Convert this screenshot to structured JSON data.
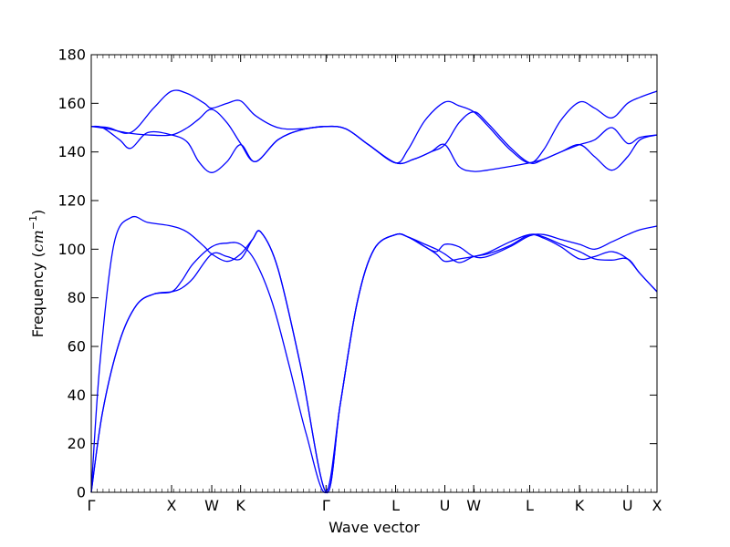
{
  "chart_data": {
    "type": "line",
    "title": "",
    "xlabel": "Wave vector",
    "ylabel": "Frequency (cm⁻¹)",
    "ylabel_main": "Frequency (",
    "ylabel_unit": "cm",
    "ylabel_exp": "−1",
    "ylabel_close": ")",
    "ylim": [
      0,
      180
    ],
    "yticks": [
      0,
      20,
      40,
      60,
      80,
      100,
      120,
      140,
      160,
      180
    ],
    "xlim": [
      0,
      1
    ],
    "grid": false,
    "legend": "none",
    "color": "#0000ff",
    "high_symmetry_points": [
      {
        "label": "Γ",
        "x": 0.0
      },
      {
        "label": "X",
        "x": 0.142
      },
      {
        "label": "W",
        "x": 0.213
      },
      {
        "label": "K",
        "x": 0.264
      },
      {
        "label": "Γ",
        "x": 0.415
      },
      {
        "label": "L",
        "x": 0.538
      },
      {
        "label": "U",
        "x": 0.625
      },
      {
        "label": "W",
        "x": 0.676
      },
      {
        "label": "L",
        "x": 0.775
      },
      {
        "label": "K",
        "x": 0.863
      },
      {
        "label": "U",
        "x": 0.948
      },
      {
        "label": "X",
        "x": 1.0
      }
    ],
    "series": [
      {
        "x": [
          0,
          0.02,
          0.05,
          0.08,
          0.11,
          0.142,
          0.16,
          0.18,
          0.213,
          0.24,
          0.264,
          0.29,
          0.32,
          0.35,
          0.38,
          0.415,
          0.44,
          0.47,
          0.5,
          0.538,
          0.56,
          0.59,
          0.61,
          0.625,
          0.65,
          0.676,
          0.7,
          0.74,
          0.775,
          0.8,
          0.83,
          0.863,
          0.89,
          0.92,
          0.948,
          0.97,
          1.0
        ],
        "values": [
          0,
          33,
          62,
          77,
          81.5,
          82.5,
          87,
          94,
          101,
          102.5,
          102,
          95,
          78,
          52,
          24,
          0,
          36,
          78,
          100,
          106,
          105,
          101,
          98,
          95,
          96,
          97,
          98.5,
          103,
          106,
          104.5,
          101,
          96,
          97,
          99,
          96,
          90,
          82.5
        ]
      },
      {
        "x": [
          0,
          0.02,
          0.05,
          0.08,
          0.11,
          0.142,
          0.16,
          0.18,
          0.213,
          0.24,
          0.264,
          0.285,
          0.3,
          0.33,
          0.37,
          0.415,
          0.44,
          0.47,
          0.5,
          0.538,
          0.56,
          0.59,
          0.61,
          0.625,
          0.65,
          0.676,
          0.7,
          0.74,
          0.775,
          0.8,
          0.83,
          0.863,
          0.89,
          0.92,
          0.948,
          0.97,
          1.0
        ],
        "values": [
          0,
          33,
          62,
          77,
          81.5,
          82.5,
          84,
          88,
          98,
          97,
          96,
          104,
          107,
          92,
          52,
          0,
          36,
          78,
          100,
          106,
          105,
          102,
          100,
          98,
          94.5,
          97,
          98,
          101.5,
          106,
          105,
          102,
          99,
          96,
          95.5,
          96,
          90,
          82.5
        ]
      },
      {
        "x": [
          0,
          0.015,
          0.04,
          0.07,
          0.1,
          0.142,
          0.17,
          0.2,
          0.213,
          0.24,
          0.264,
          0.285,
          0.3,
          0.33,
          0.37,
          0.415,
          0.44,
          0.47,
          0.5,
          0.538,
          0.56,
          0.59,
          0.61,
          0.625,
          0.65,
          0.676,
          0.7,
          0.74,
          0.775,
          0.8,
          0.83,
          0.863,
          0.89,
          0.92,
          0.948,
          0.97,
          1.0
        ],
        "values": [
          0,
          52,
          102,
          113,
          111,
          109.5,
          107,
          101,
          98,
          95,
          98,
          104,
          107,
          92,
          52,
          0,
          36,
          78,
          100,
          106,
          105,
          101,
          99,
          102,
          101,
          97,
          97,
          101,
          105.5,
          106,
          104,
          102,
          100,
          103,
          106,
          108,
          109.5
        ]
      },
      {
        "x": [
          0,
          0.02,
          0.05,
          0.07,
          0.1,
          0.142,
          0.17,
          0.19,
          0.213,
          0.24,
          0.264,
          0.29,
          0.33,
          0.37,
          0.415,
          0.45,
          0.49,
          0.538,
          0.57,
          0.6,
          0.625,
          0.65,
          0.676,
          0.7,
          0.74,
          0.775,
          0.8,
          0.83,
          0.863,
          0.89,
          0.92,
          0.948,
          0.97,
          1.0
        ],
        "values": [
          150.5,
          150,
          145,
          141.5,
          148,
          147,
          144,
          136,
          131.5,
          136,
          143,
          136,
          145,
          149,
          150.5,
          149.5,
          143,
          135.5,
          137,
          140,
          143,
          152,
          156.5,
          152,
          142,
          135.5,
          137,
          140,
          143,
          138,
          132.5,
          138,
          145,
          147
        ]
      },
      {
        "x": [
          0,
          0.03,
          0.06,
          0.1,
          0.142,
          0.17,
          0.19,
          0.213,
          0.24,
          0.264,
          0.29,
          0.33,
          0.37,
          0.415,
          0.45,
          0.49,
          0.538,
          0.57,
          0.6,
          0.625,
          0.65,
          0.676,
          0.7,
          0.74,
          0.775,
          0.8,
          0.83,
          0.863,
          0.89,
          0.92,
          0.948,
          0.97,
          1.0
        ],
        "values": [
          150.5,
          149.5,
          148,
          147,
          147,
          150,
          153.5,
          157.5,
          152,
          143.5,
          136,
          145,
          149,
          150.5,
          149.5,
          143,
          135.5,
          137,
          140,
          143,
          134,
          132,
          132.5,
          134,
          135.5,
          137,
          140,
          143,
          145,
          150,
          143.5,
          146,
          147
        ]
      },
      {
        "x": [
          0,
          0.03,
          0.07,
          0.11,
          0.142,
          0.17,
          0.2,
          0.213,
          0.24,
          0.264,
          0.29,
          0.33,
          0.37,
          0.415,
          0.45,
          0.49,
          0.538,
          0.56,
          0.59,
          0.625,
          0.65,
          0.676,
          0.7,
          0.74,
          0.775,
          0.8,
          0.83,
          0.863,
          0.89,
          0.92,
          0.948,
          0.97,
          1.0
        ],
        "values": [
          150.5,
          150,
          148,
          158,
          165,
          164,
          160,
          158,
          160,
          161,
          155,
          150,
          149.5,
          150.5,
          149.5,
          143,
          135.5,
          141,
          153,
          160.5,
          159,
          156.5,
          151,
          141,
          135.5,
          141,
          153,
          160.5,
          158,
          154,
          160,
          162.5,
          165
        ]
      }
    ]
  }
}
